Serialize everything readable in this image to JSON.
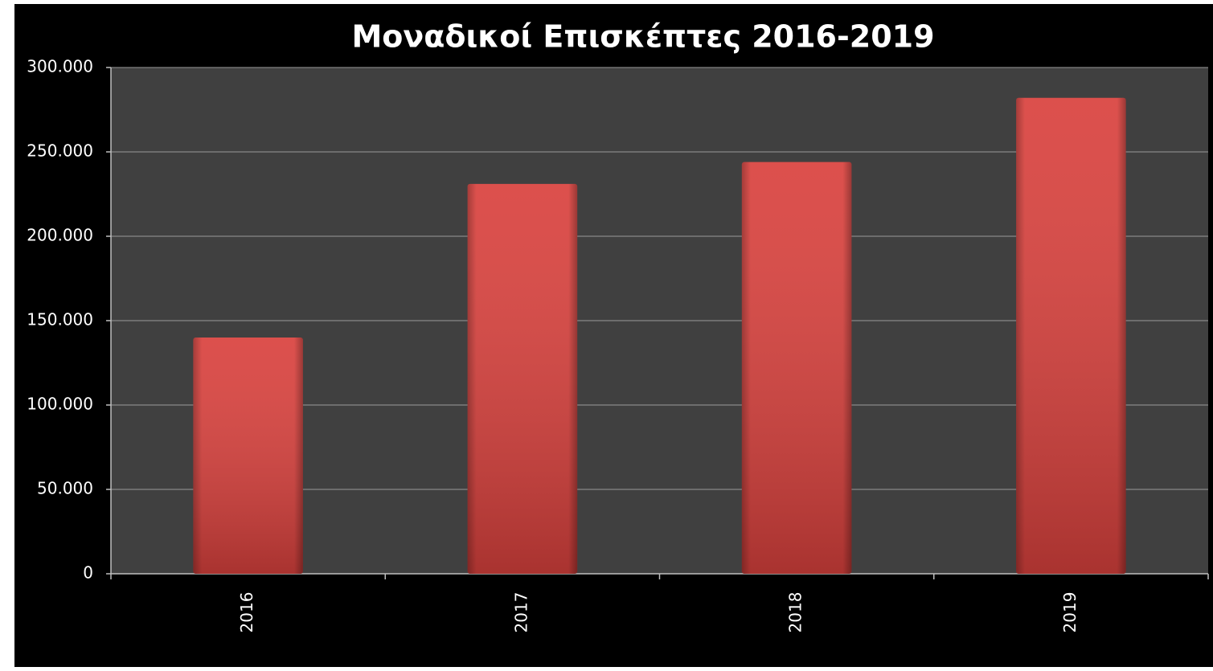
{
  "chart_data": {
    "type": "bar",
    "title": "Μοναδικοί Επισκέπτες 2016-2019",
    "categories": [
      "2016",
      "2017",
      "2018",
      "2019"
    ],
    "values": [
      140000,
      231000,
      244000,
      282000
    ],
    "color": "#d9413d",
    "ylim": [
      0,
      300000
    ],
    "yticks": [
      0,
      {
        "value": 50000,
        "label": "50.000"
      },
      {
        "value": 100000,
        "label": "100.000"
      },
      {
        "value": 150000,
        "label": "150.000"
      },
      {
        "value": 200000,
        "label": "200.000"
      },
      {
        "value": 250000,
        "label": "250.000"
      },
      {
        "value": 300000,
        "label": "300.000"
      }
    ],
    "grid": true
  }
}
